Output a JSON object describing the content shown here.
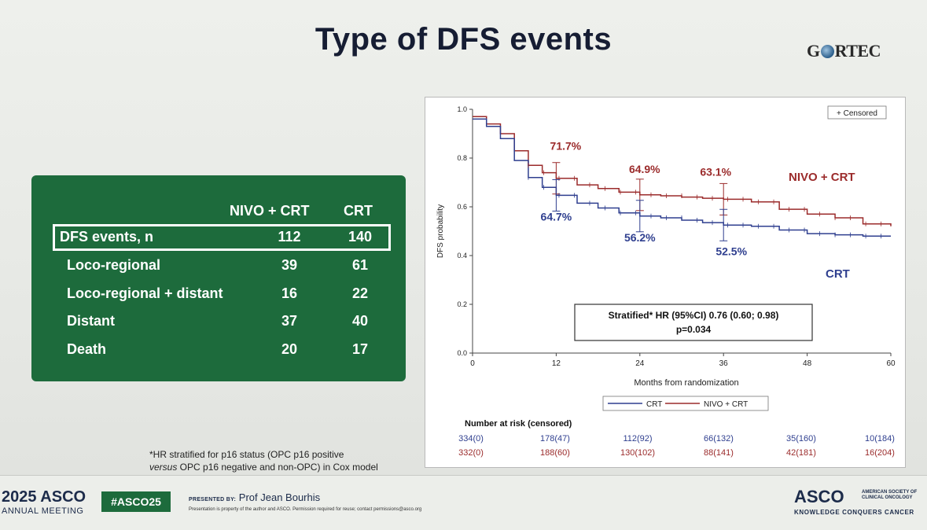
{
  "slide": {
    "title": "Type of DFS events",
    "logo": "GORTEC",
    "footnote_line1": "*HR stratified for p16 status (OPC p16 positive",
    "footnote_line2_italic": "versus",
    "footnote_line2_rest": " OPC p16 negative and non-OPC) in Cox model"
  },
  "table": {
    "columns": [
      "",
      "NIVO + CRT",
      "CRT"
    ],
    "rows": [
      {
        "label": "DFS events, n",
        "nivo_crt": "112",
        "crt": "140",
        "highlighted": true
      },
      {
        "label": "Loco-regional",
        "nivo_crt": "39",
        "crt": "61"
      },
      {
        "label": "Loco-regional + distant",
        "nivo_crt": "16",
        "crt": "22"
      },
      {
        "label": "Distant",
        "nivo_crt": "37",
        "crt": "40"
      },
      {
        "label": "Death",
        "nivo_crt": "20",
        "crt": "17"
      }
    ],
    "colors": {
      "background": "#1d6b3c",
      "text": "#ffffff"
    }
  },
  "chart_data": {
    "type": "line",
    "subtype": "kaplan-meier",
    "xlabel": "Months from randomization",
    "ylabel": "DFS probability",
    "xlim": [
      0,
      60
    ],
    "ylim": [
      0.0,
      1.0
    ],
    "xticks": [
      0,
      12,
      24,
      36,
      48,
      60
    ],
    "yticks": [
      "0.0",
      "0.2",
      "0.4",
      "0.6",
      "0.8",
      "1.0"
    ],
    "censored_label": "+ Censored",
    "series": [
      {
        "name": "NIVO + CRT",
        "color": "#9b2b2b",
        "points": [
          [
            0,
            0.97
          ],
          [
            2,
            0.94
          ],
          [
            4,
            0.9
          ],
          [
            6,
            0.83
          ],
          [
            8,
            0.77
          ],
          [
            10,
            0.74
          ],
          [
            12,
            0.717
          ],
          [
            15,
            0.69
          ],
          [
            18,
            0.675
          ],
          [
            21,
            0.66
          ],
          [
            24,
            0.649
          ],
          [
            27,
            0.645
          ],
          [
            30,
            0.64
          ],
          [
            33,
            0.635
          ],
          [
            36,
            0.631
          ],
          [
            40,
            0.62
          ],
          [
            44,
            0.59
          ],
          [
            48,
            0.57
          ],
          [
            52,
            0.555
          ],
          [
            56,
            0.53
          ],
          [
            60,
            0.52
          ]
        ],
        "landmarks": [
          {
            "x": 12,
            "y": 0.717,
            "label": "71.7%"
          },
          {
            "x": 24,
            "y": 0.649,
            "label": "64.9%"
          },
          {
            "x": 36,
            "y": 0.631,
            "label": "63.1%"
          }
        ]
      },
      {
        "name": "CRT",
        "color": "#2f3f8f",
        "points": [
          [
            0,
            0.96
          ],
          [
            2,
            0.93
          ],
          [
            4,
            0.88
          ],
          [
            6,
            0.79
          ],
          [
            8,
            0.72
          ],
          [
            10,
            0.68
          ],
          [
            12,
            0.647
          ],
          [
            15,
            0.615
          ],
          [
            18,
            0.595
          ],
          [
            21,
            0.575
          ],
          [
            24,
            0.562
          ],
          [
            27,
            0.555
          ],
          [
            30,
            0.545
          ],
          [
            33,
            0.535
          ],
          [
            36,
            0.525
          ],
          [
            40,
            0.52
          ],
          [
            44,
            0.505
          ],
          [
            48,
            0.49
          ],
          [
            52,
            0.485
          ],
          [
            56,
            0.48
          ],
          [
            60,
            0.48
          ]
        ],
        "landmarks": [
          {
            "x": 12,
            "y": 0.647,
            "label": "64.7%"
          },
          {
            "x": 24,
            "y": 0.562,
            "label": "56.2%"
          },
          {
            "x": 36,
            "y": 0.525,
            "label": "52.5%"
          }
        ]
      }
    ],
    "series_labels": {
      "nivo_crt": "NIVO + CRT",
      "crt": "CRT"
    },
    "legend": {
      "crt": "CRT",
      "nivo_crt": "NIVO + CRT",
      "placement": "bottom-center"
    },
    "annotation": {
      "line1": "Stratified* HR (95%CI) 0.76 (0.60; 0.98)",
      "line2": "p=0.034"
    },
    "risk_table": {
      "title": "Number at risk (censored)",
      "crt": [
        "334(0)",
        "178(47)",
        "112(92)",
        "66(132)",
        "35(160)",
        "10(184)"
      ],
      "nivo_crt": [
        "332(0)",
        "188(60)",
        "130(102)",
        "88(141)",
        "42(181)",
        "16(204)"
      ]
    }
  },
  "footer": {
    "meeting_year": "2025 ASCO",
    "meeting_sub": "ANNUAL MEETING",
    "hashtag": "#ASCO25",
    "presented_by_label": "PRESENTED BY:",
    "presenter": "Prof Jean Bourhis",
    "disclaimer": "Presentation is property of the author and ASCO. Permission required for reuse; contact permissions@asco.org",
    "asco": "ASCO",
    "asco_side_1": "AMERICAN SOCIETY OF",
    "asco_side_2": "CLINICAL ONCOLOGY",
    "asco_tag": "KNOWLEDGE CONQUERS CANCER"
  }
}
